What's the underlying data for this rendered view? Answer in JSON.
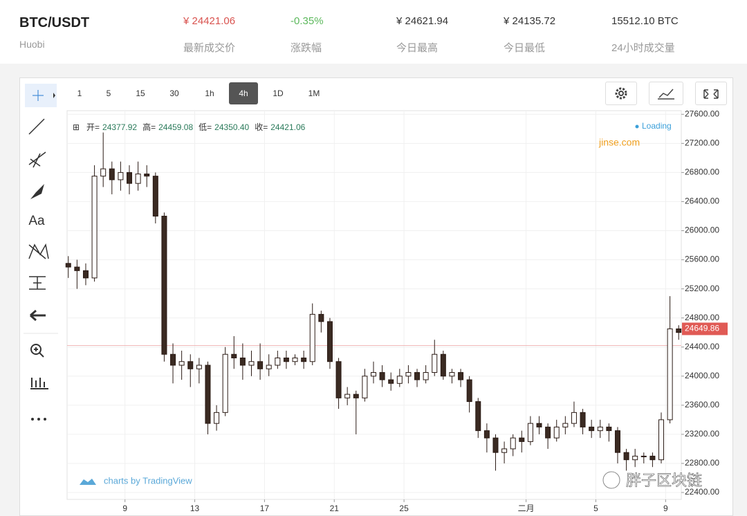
{
  "header": {
    "symbol": "BTC/USDT",
    "exchange": "Huobi",
    "stats": [
      {
        "value": "¥ 24421.06",
        "label": "最新成交价"
      },
      {
        "value": "-0.35%",
        "label": "涨跌幅"
      },
      {
        "value": "¥ 24621.94",
        "label": "今日最高"
      },
      {
        "value": "¥ 24135.72",
        "label": "今日最低"
      },
      {
        "value": "15512.10 BTC",
        "label": "24小时成交量"
      }
    ]
  },
  "toolbar": {
    "text_tool": "Aa"
  },
  "intervals": {
    "items": [
      "1",
      "5",
      "15",
      "30",
      "1h",
      "4h",
      "1D",
      "1M"
    ],
    "active": "4h"
  },
  "legend": {
    "items": [
      {
        "label": "开=",
        "value": "24377.92"
      },
      {
        "label": "高=",
        "value": "24459.08"
      },
      {
        "label": "低=",
        "value": "24350.40"
      },
      {
        "label": "收=",
        "value": "24421.06"
      }
    ],
    "status": "Loading",
    "source": "jinse.com"
  },
  "attribution": "charts by TradingView",
  "watermark": "胖子区块链",
  "chart_data": {
    "type": "candlestick",
    "x": [
      5.75,
      6.25,
      6.75,
      7.25,
      7.75,
      8.25,
      8.75,
      9.25,
      9.75,
      10.25,
      10.75,
      11.25,
      11.75,
      12.25,
      12.75,
      13.25,
      13.75,
      14.25,
      14.75,
      15.25,
      15.75,
      16.25,
      16.75,
      17.25,
      17.75,
      18.25,
      18.75,
      19.25,
      19.75,
      20.25,
      20.75,
      21.25,
      21.75,
      22.25,
      22.75,
      23.25,
      23.75,
      24.25,
      24.75,
      25.25,
      25.75,
      26.25,
      26.75,
      27.25,
      27.75,
      28.25,
      28.75,
      29.25,
      29.75,
      30.25,
      30.75,
      31.25,
      31.75,
      32.25,
      32.75,
      33.25,
      33.75,
      34.25,
      34.75,
      35.25,
      35.75,
      36.25,
      36.75,
      37.25,
      37.75,
      38.25,
      38.75,
      39.25,
      39.75,
      40.25,
      40.75
    ],
    "open": [
      25550,
      25500,
      25450,
      25350,
      26750,
      26850,
      26700,
      26800,
      26650,
      26780,
      26750,
      26200,
      24300,
      24150,
      24200,
      24100,
      24150,
      23350,
      23500,
      24300,
      24250,
      24150,
      24200,
      24100,
      24150,
      24250,
      24200,
      24250,
      24200,
      24850,
      24750,
      24200,
      23700,
      23750,
      23700,
      24000,
      24050,
      23950,
      23900,
      24000,
      24050,
      23950,
      24050,
      24300,
      24000,
      24050,
      23950,
      23650,
      23250,
      23150,
      22950,
      23000,
      23150,
      23100,
      23350,
      23300,
      23150,
      23300,
      23350,
      23500,
      23300,
      23250,
      23300,
      23250,
      22950,
      22850,
      22900,
      22900,
      22850,
      23400,
      24650
    ],
    "high": [
      25650,
      25600,
      25550,
      26900,
      27350,
      26950,
      26950,
      26900,
      26950,
      26900,
      26800,
      26250,
      24450,
      24350,
      24300,
      24250,
      24200,
      23600,
      24400,
      24550,
      24450,
      24350,
      24450,
      24300,
      24350,
      24350,
      24300,
      24350,
      25000,
      24900,
      24800,
      24250,
      23850,
      23800,
      24100,
      24200,
      24150,
      24050,
      24100,
      24150,
      24100,
      24150,
      24500,
      24350,
      24100,
      24100,
      24000,
      23700,
      23350,
      23200,
      23100,
      23200,
      23250,
      23450,
      23450,
      23350,
      23400,
      23450,
      23650,
      23550,
      23400,
      23400,
      23350,
      23300,
      23000,
      23000,
      22950,
      22950,
      23500,
      25100,
      24700
    ],
    "low": [
      25350,
      25200,
      25250,
      25300,
      26600,
      26500,
      26550,
      26500,
      26550,
      26600,
      26100,
      24200,
      23900,
      23950,
      23850,
      23900,
      23200,
      23250,
      23450,
      24100,
      23950,
      24000,
      23950,
      24000,
      24100,
      24100,
      24150,
      24100,
      24150,
      24600,
      24100,
      23550,
      23600,
      23200,
      23650,
      23900,
      23850,
      23800,
      23850,
      23900,
      23850,
      23900,
      24000,
      23950,
      23900,
      23850,
      23500,
      23150,
      22950,
      22700,
      22800,
      22900,
      22950,
      23050,
      23200,
      23000,
      23100,
      23200,
      23300,
      23200,
      23150,
      23150,
      23100,
      22800,
      22700,
      22750,
      22800,
      22750,
      22800,
      23350,
      24500
    ],
    "close": [
      25500,
      25450,
      25350,
      26750,
      26850,
      26700,
      26800,
      26650,
      26780,
      26750,
      26200,
      24300,
      24150,
      24200,
      24100,
      24150,
      23350,
      23500,
      24300,
      24250,
      24150,
      24200,
      24100,
      24150,
      24250,
      24200,
      24250,
      24200,
      24850,
      24750,
      24200,
      23700,
      23750,
      23700,
      24000,
      24050,
      23950,
      23900,
      24000,
      24050,
      23950,
      24050,
      24300,
      24000,
      24050,
      23950,
      23650,
      23250,
      23150,
      22950,
      23000,
      23150,
      23100,
      23350,
      23300,
      23150,
      23300,
      23350,
      23500,
      23300,
      23250,
      23300,
      23250,
      22950,
      22850,
      22900,
      22900,
      22850,
      23400,
      24650,
      24600
    ],
    "xlim": [
      5.68,
      40.9
    ],
    "xticks": [
      9,
      13,
      17,
      21,
      25,
      {
        "value": 32,
        "label": "二月"
      },
      {
        "value": 36,
        "label": "5"
      },
      {
        "value": 40,
        "label": "9"
      }
    ],
    "ylim": [
      22305,
      27650
    ],
    "yticks": [
      {
        "value": 22400,
        "label": "22400.00"
      },
      {
        "value": 22800,
        "label": "22800.00"
      },
      {
        "value": 23200,
        "label": "23200.00"
      },
      {
        "value": 23600,
        "label": "23600.00"
      },
      {
        "value": 24000,
        "label": "24000.00"
      },
      {
        "value": 24400,
        "label": "24400.00"
      },
      {
        "value": 24800,
        "label": "24800.00"
      },
      {
        "value": 25200,
        "label": "25200.00"
      },
      {
        "value": 25600,
        "label": "25600.00"
      },
      {
        "value": 26000,
        "label": "26000.00"
      },
      {
        "value": 26400,
        "label": "26400.00"
      },
      {
        "value": 26800,
        "label": "26800.00"
      },
      {
        "value": 27200,
        "label": "27200.00"
      },
      {
        "value": 27600,
        "label": "27600.00"
      }
    ],
    "grid": true,
    "price_line": 24421.06,
    "last_price": 24649.86,
    "up_color": "#ffffff",
    "down_color": "#3a2a22",
    "edge_color": "#2a1a14",
    "price_line_color": "#f0b8b8",
    "price_tag_color": "#e05a55"
  }
}
